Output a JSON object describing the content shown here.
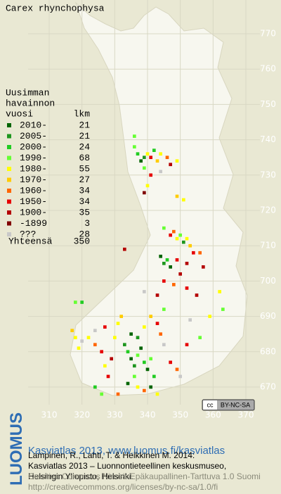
{
  "header": {
    "title": "Carex rhynchophysa"
  },
  "legend": {
    "heading": [
      "Uusimman",
      "havainnon",
      "vuosi"
    ],
    "count_heading": "lkm",
    "rows": [
      {
        "label": "2010-",
        "count": 21,
        "color": "#006400"
      },
      {
        "label": "2005-",
        "count": 21,
        "color": "#1e961e"
      },
      {
        "label": "2000-",
        "count": 24,
        "color": "#22cc22"
      },
      {
        "label": "1990-",
        "count": 68,
        "color": "#66ff33"
      },
      {
        "label": "1980-",
        "count": 55,
        "color": "#ffff00"
      },
      {
        "label": "1970-",
        "count": 27,
        "color": "#ffcc00"
      },
      {
        "label": "1960-",
        "count": 34,
        "color": "#ff6600"
      },
      {
        "label": "1950-",
        "count": 34,
        "color": "#e60000"
      },
      {
        "label": "1900-",
        "count": 35,
        "color": "#b40000"
      },
      {
        "label": "-1899",
        "count": 3,
        "color": "#800000"
      },
      {
        "label": "???",
        "count": 28,
        "color": "#c8c8c8"
      }
    ],
    "total_label": "Yhteensä",
    "total": 350
  },
  "map": {
    "xlim": [
      310,
      370
    ],
    "ylim": [
      670,
      770
    ],
    "xticks": [
      310,
      320,
      330,
      340,
      350,
      360,
      370
    ],
    "yticks": [
      670,
      680,
      690,
      700,
      710,
      720,
      730,
      740,
      750,
      760,
      770
    ],
    "points": [
      {
        "x": 336,
        "y": 738,
        "k": 3
      },
      {
        "x": 337,
        "y": 736,
        "k": 2
      },
      {
        "x": 338,
        "y": 734,
        "k": 0
      },
      {
        "x": 339,
        "y": 735,
        "k": 1
      },
      {
        "x": 340,
        "y": 736,
        "k": 4
      },
      {
        "x": 341,
        "y": 735,
        "k": 7
      },
      {
        "x": 342,
        "y": 737,
        "k": 2
      },
      {
        "x": 343,
        "y": 734,
        "k": 5
      },
      {
        "x": 344,
        "y": 736,
        "k": 4
      },
      {
        "x": 346,
        "y": 735,
        "k": 6
      },
      {
        "x": 347,
        "y": 733,
        "k": 8
      },
      {
        "x": 349,
        "y": 734,
        "k": 4
      },
      {
        "x": 336,
        "y": 741,
        "k": 3
      },
      {
        "x": 339,
        "y": 732,
        "k": 3
      },
      {
        "x": 341,
        "y": 730,
        "k": 7
      },
      {
        "x": 344,
        "y": 731,
        "k": 10
      },
      {
        "x": 340,
        "y": 727,
        "k": 4
      },
      {
        "x": 349,
        "y": 724,
        "k": 5
      },
      {
        "x": 351,
        "y": 723,
        "k": 4
      },
      {
        "x": 339,
        "y": 725,
        "k": 9
      },
      {
        "x": 345,
        "y": 715,
        "k": 3
      },
      {
        "x": 347,
        "y": 713,
        "k": 7
      },
      {
        "x": 348,
        "y": 714,
        "k": 6
      },
      {
        "x": 349,
        "y": 712,
        "k": 4
      },
      {
        "x": 350,
        "y": 713,
        "k": 3
      },
      {
        "x": 351,
        "y": 711,
        "k": 1
      },
      {
        "x": 352,
        "y": 712,
        "k": 4
      },
      {
        "x": 353,
        "y": 710,
        "k": 5
      },
      {
        "x": 354,
        "y": 708,
        "k": 7
      },
      {
        "x": 356,
        "y": 708,
        "k": 6
      },
      {
        "x": 344,
        "y": 707,
        "k": 0
      },
      {
        "x": 345,
        "y": 705,
        "k": 1
      },
      {
        "x": 346,
        "y": 706,
        "k": 2
      },
      {
        "x": 347,
        "y": 704,
        "k": 0
      },
      {
        "x": 349,
        "y": 706,
        "k": 7
      },
      {
        "x": 350,
        "y": 702,
        "k": 8
      },
      {
        "x": 352,
        "y": 705,
        "k": 8
      },
      {
        "x": 345,
        "y": 700,
        "k": 7
      },
      {
        "x": 348,
        "y": 699,
        "k": 6
      },
      {
        "x": 352,
        "y": 698,
        "k": 7
      },
      {
        "x": 355,
        "y": 696,
        "k": 8
      },
      {
        "x": 343,
        "y": 696,
        "k": 8
      },
      {
        "x": 339,
        "y": 697,
        "k": 10
      },
      {
        "x": 363,
        "y": 692,
        "k": 3
      },
      {
        "x": 362,
        "y": 697,
        "k": 4
      },
      {
        "x": 357,
        "y": 704,
        "k": 8
      },
      {
        "x": 333,
        "y": 709,
        "k": 8
      },
      {
        "x": 318,
        "y": 694,
        "k": 3
      },
      {
        "x": 320,
        "y": 694,
        "k": 2
      },
      {
        "x": 317,
        "y": 686,
        "k": 5
      },
      {
        "x": 318,
        "y": 684,
        "k": 4
      },
      {
        "x": 320,
        "y": 683,
        "k": 10
      },
      {
        "x": 319,
        "y": 681,
        "k": 4
      },
      {
        "x": 322,
        "y": 684,
        "k": 4
      },
      {
        "x": 324,
        "y": 682,
        "k": 6
      },
      {
        "x": 324,
        "y": 686,
        "k": 10
      },
      {
        "x": 327,
        "y": 687,
        "k": 7
      },
      {
        "x": 326,
        "y": 680,
        "k": 7
      },
      {
        "x": 327,
        "y": 676,
        "k": 4
      },
      {
        "x": 328,
        "y": 673,
        "k": 7
      },
      {
        "x": 329,
        "y": 678,
        "k": 8
      },
      {
        "x": 330,
        "y": 684,
        "k": 4
      },
      {
        "x": 331,
        "y": 688,
        "k": 4
      },
      {
        "x": 332,
        "y": 690,
        "k": 5
      },
      {
        "x": 333,
        "y": 682,
        "k": 1
      },
      {
        "x": 334,
        "y": 680,
        "k": 2
      },
      {
        "x": 335,
        "y": 678,
        "k": 0
      },
      {
        "x": 336,
        "y": 676,
        "k": 1
      },
      {
        "x": 337,
        "y": 679,
        "k": 3
      },
      {
        "x": 338,
        "y": 681,
        "k": 0
      },
      {
        "x": 339,
        "y": 677,
        "k": 2
      },
      {
        "x": 340,
        "y": 675,
        "k": 0
      },
      {
        "x": 341,
        "y": 678,
        "k": 3
      },
      {
        "x": 342,
        "y": 673,
        "k": 2
      },
      {
        "x": 336,
        "y": 673,
        "k": 3
      },
      {
        "x": 334,
        "y": 671,
        "k": 0
      },
      {
        "x": 337,
        "y": 670,
        "k": 4
      },
      {
        "x": 339,
        "y": 669,
        "k": 6
      },
      {
        "x": 341,
        "y": 670,
        "k": 0
      },
      {
        "x": 343,
        "y": 668,
        "k": 4
      },
      {
        "x": 335,
        "y": 685,
        "k": 0
      },
      {
        "x": 337,
        "y": 684,
        "k": 1
      },
      {
        "x": 339,
        "y": 687,
        "k": 4
      },
      {
        "x": 341,
        "y": 690,
        "k": 5
      },
      {
        "x": 343,
        "y": 688,
        "k": 7
      },
      {
        "x": 344,
        "y": 685,
        "k": 6
      },
      {
        "x": 345,
        "y": 682,
        "k": 10
      },
      {
        "x": 347,
        "y": 677,
        "k": 7
      },
      {
        "x": 349,
        "y": 675,
        "k": 6
      },
      {
        "x": 350,
        "y": 673,
        "k": 10
      },
      {
        "x": 352,
        "y": 682,
        "k": 7
      },
      {
        "x": 356,
        "y": 684,
        "k": 3
      },
      {
        "x": 359,
        "y": 690,
        "k": 4
      },
      {
        "x": 345,
        "y": 692,
        "k": 3
      },
      {
        "x": 353,
        "y": 689,
        "k": 10
      },
      {
        "x": 324,
        "y": 670,
        "k": 2
      },
      {
        "x": 326,
        "y": 668,
        "k": 3
      },
      {
        "x": 331,
        "y": 668,
        "k": 6
      }
    ]
  },
  "badge": {
    "cc": "cc",
    "license": "BY-NC-SA"
  },
  "footer": {
    "brand": "LUOMUS",
    "link": "Kasviatlas 2013, www.luomus.fi/kasviatlas",
    "citation": [
      "Lampinen, R., Lahti, T. & Heikkinen M. 2014:",
      "Kasviatlas 2013 – Luonnontieteellinen keskusmuseo,",
      "Helsingin Yliopisto, Helsinki."
    ],
    "license": [
      "Creative Commons Nimeä-Epäkaupallinen-Tarttuva 1.0 Suomi",
      "http://creativecommons.org/licenses/by-nc-sa/1.0/fi"
    ]
  }
}
